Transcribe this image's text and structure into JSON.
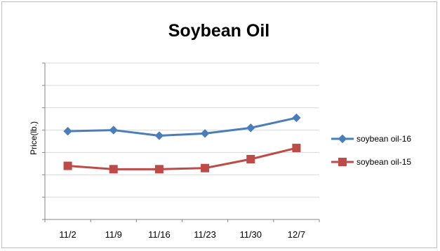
{
  "chart_data": {
    "type": "line",
    "title": "Soybean Oil",
    "xlabel": "",
    "ylabel": "Price(lb.)",
    "categories": [
      "11/2",
      "11/9",
      "11/16",
      "11/23",
      "11/30",
      "12/7"
    ],
    "ylim": [
      0,
      7
    ],
    "y_ticks_labeled": false,
    "grid": true,
    "legend_position": "right",
    "series": [
      {
        "name": "soybean oil-16",
        "color": "#4a7ebb",
        "marker": "diamond",
        "values": [
          3.95,
          4.0,
          3.75,
          3.85,
          4.1,
          4.55
        ]
      },
      {
        "name": "soybean oil-15",
        "color": "#be4b48",
        "marker": "square",
        "values": [
          2.4,
          2.25,
          2.25,
          2.3,
          2.7,
          3.2
        ]
      }
    ]
  }
}
